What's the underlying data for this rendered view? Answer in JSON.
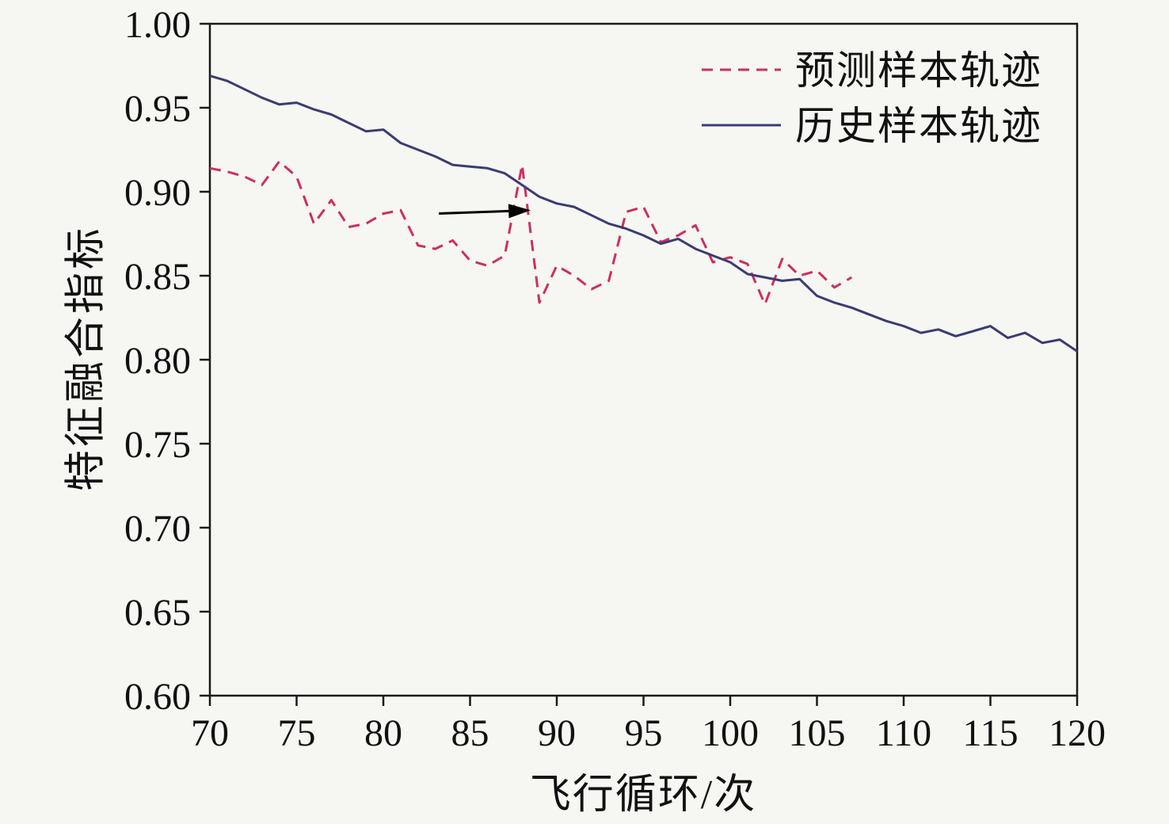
{
  "chart_data": {
    "type": "line",
    "title": "",
    "xlabel": "飞行循环/次",
    "ylabel": "特征融合指标",
    "xlim": [
      70,
      120
    ],
    "ylim": [
      0.6,
      1.0
    ],
    "xticks": [
      70,
      75,
      80,
      85,
      90,
      95,
      100,
      105,
      110,
      115,
      120
    ],
    "yticks": [
      1.0,
      0.95,
      0.9,
      0.85,
      0.8,
      0.75,
      0.7,
      0.65,
      0.6
    ],
    "ytick_decimals": 2,
    "grid": false,
    "legend_position": "top-right",
    "colors": {
      "background": "#f6f6f3",
      "axis": "#1a1a1a",
      "predicted": "#cc2f5e",
      "historical": "#3b3b74",
      "annotation": "#000000"
    },
    "series": [
      {
        "name": "预测样本轨迹",
        "style": "dashed",
        "color": "#cc2f5e",
        "x": [
          70,
          71,
          72,
          73,
          74,
          75,
          76,
          77,
          78,
          79,
          80,
          81,
          82,
          83,
          84,
          85,
          86,
          87,
          88,
          89,
          90,
          91,
          92,
          93,
          94,
          95,
          96,
          97,
          98,
          99,
          100,
          101,
          102,
          103,
          104,
          105,
          106,
          107
        ],
        "y": [
          0.914,
          0.912,
          0.909,
          0.904,
          0.918,
          0.909,
          0.881,
          0.895,
          0.879,
          0.881,
          0.887,
          0.889,
          0.868,
          0.866,
          0.871,
          0.859,
          0.856,
          0.862,
          0.916,
          0.834,
          0.856,
          0.85,
          0.842,
          0.847,
          0.888,
          0.891,
          0.87,
          0.874,
          0.88,
          0.858,
          0.861,
          0.857,
          0.833,
          0.86,
          0.85,
          0.853,
          0.843,
          0.849
        ]
      },
      {
        "name": "历史样本轨迹",
        "style": "solid",
        "color": "#3b3b74",
        "x": [
          70,
          71,
          72,
          73,
          74,
          75,
          76,
          77,
          78,
          79,
          80,
          81,
          82,
          83,
          84,
          85,
          86,
          87,
          88,
          89,
          90,
          91,
          92,
          93,
          94,
          95,
          96,
          97,
          98,
          99,
          100,
          101,
          102,
          103,
          104,
          105,
          106,
          107,
          108,
          109,
          110,
          111,
          112,
          113,
          114,
          115,
          116,
          117,
          118,
          119,
          120
        ],
        "y": [
          0.969,
          0.966,
          0.961,
          0.956,
          0.952,
          0.953,
          0.949,
          0.946,
          0.941,
          0.936,
          0.937,
          0.929,
          0.925,
          0.921,
          0.916,
          0.915,
          0.914,
          0.911,
          0.904,
          0.897,
          0.893,
          0.891,
          0.886,
          0.881,
          0.878,
          0.874,
          0.869,
          0.872,
          0.866,
          0.862,
          0.858,
          0.851,
          0.849,
          0.847,
          0.848,
          0.838,
          0.834,
          0.831,
          0.827,
          0.823,
          0.82,
          0.816,
          0.818,
          0.814,
          0.817,
          0.82,
          0.813,
          0.816,
          0.81,
          0.812,
          0.805
        ]
      }
    ],
    "annotation_arrow": {
      "from": [
        83.2,
        0.887
      ],
      "to": [
        88.5,
        0.889
      ],
      "color": "#000000"
    }
  }
}
